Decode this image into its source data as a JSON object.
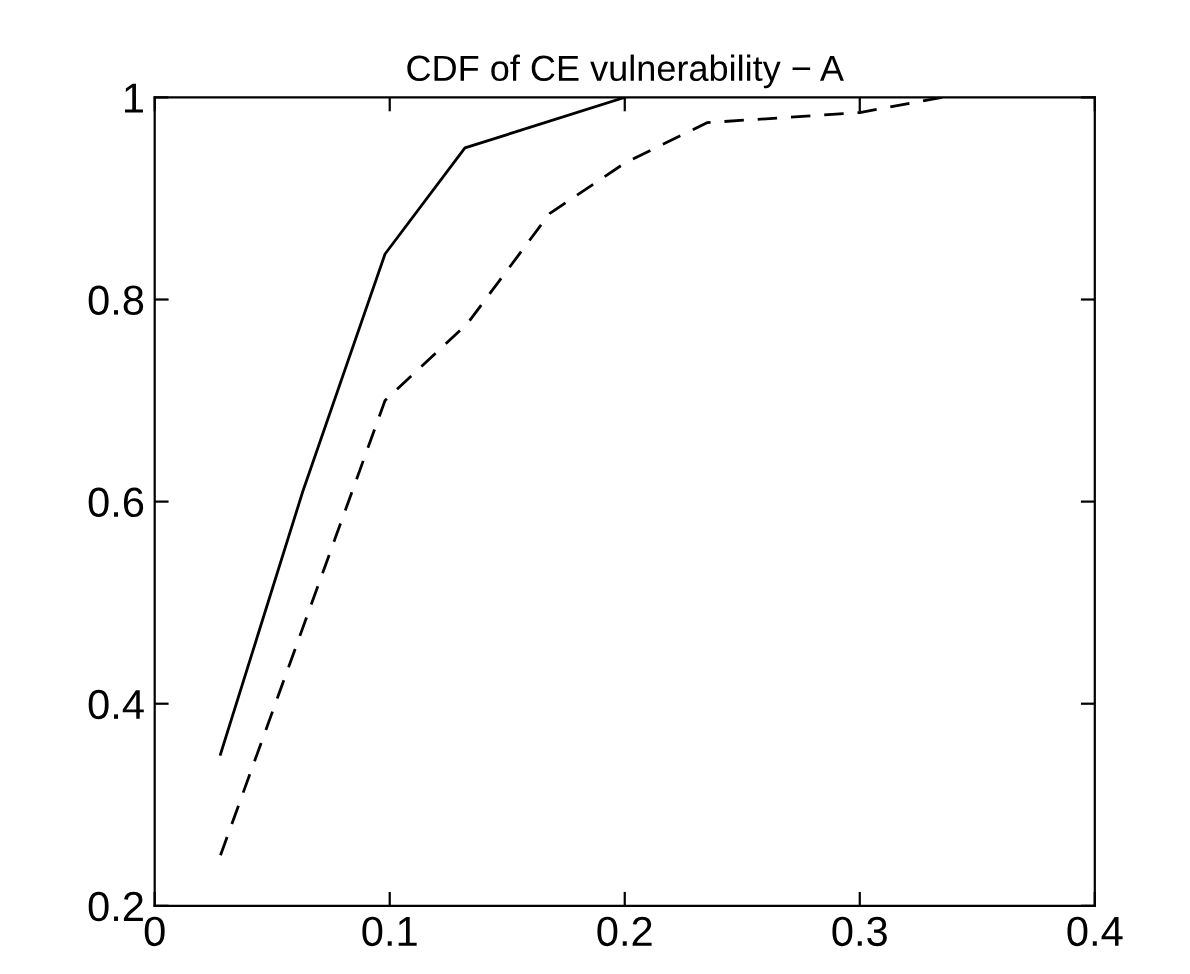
{
  "chart_data": {
    "type": "line",
    "title": "CDF of CE vulnerability − A",
    "series": [
      {
        "color": "#000000",
        "line_style": "solid",
        "x": [
          0.028,
          0.063,
          0.098,
          0.132,
          0.2
        ],
        "values": [
          0.35,
          0.61,
          0.845,
          0.95,
          1.0
        ]
      },
      {
        "color": "#000000",
        "line_style": "dashed",
        "x": [
          0.028,
          0.098,
          0.133,
          0.168,
          0.2,
          0.235,
          0.3,
          0.335
        ],
        "values": [
          0.25,
          0.7,
          0.776,
          0.885,
          0.935,
          0.975,
          0.985,
          1.0
        ]
      }
    ],
    "xlim": [
      0,
      0.4
    ],
    "xticks": [
      0,
      0.1,
      0.2,
      0.3,
      0.4
    ],
    "ylim": [
      0.2,
      1
    ],
    "yticks": [
      0.2,
      0.4,
      0.6,
      0.8,
      1
    ],
    "grid": false,
    "legend": false,
    "marker": "none"
  }
}
